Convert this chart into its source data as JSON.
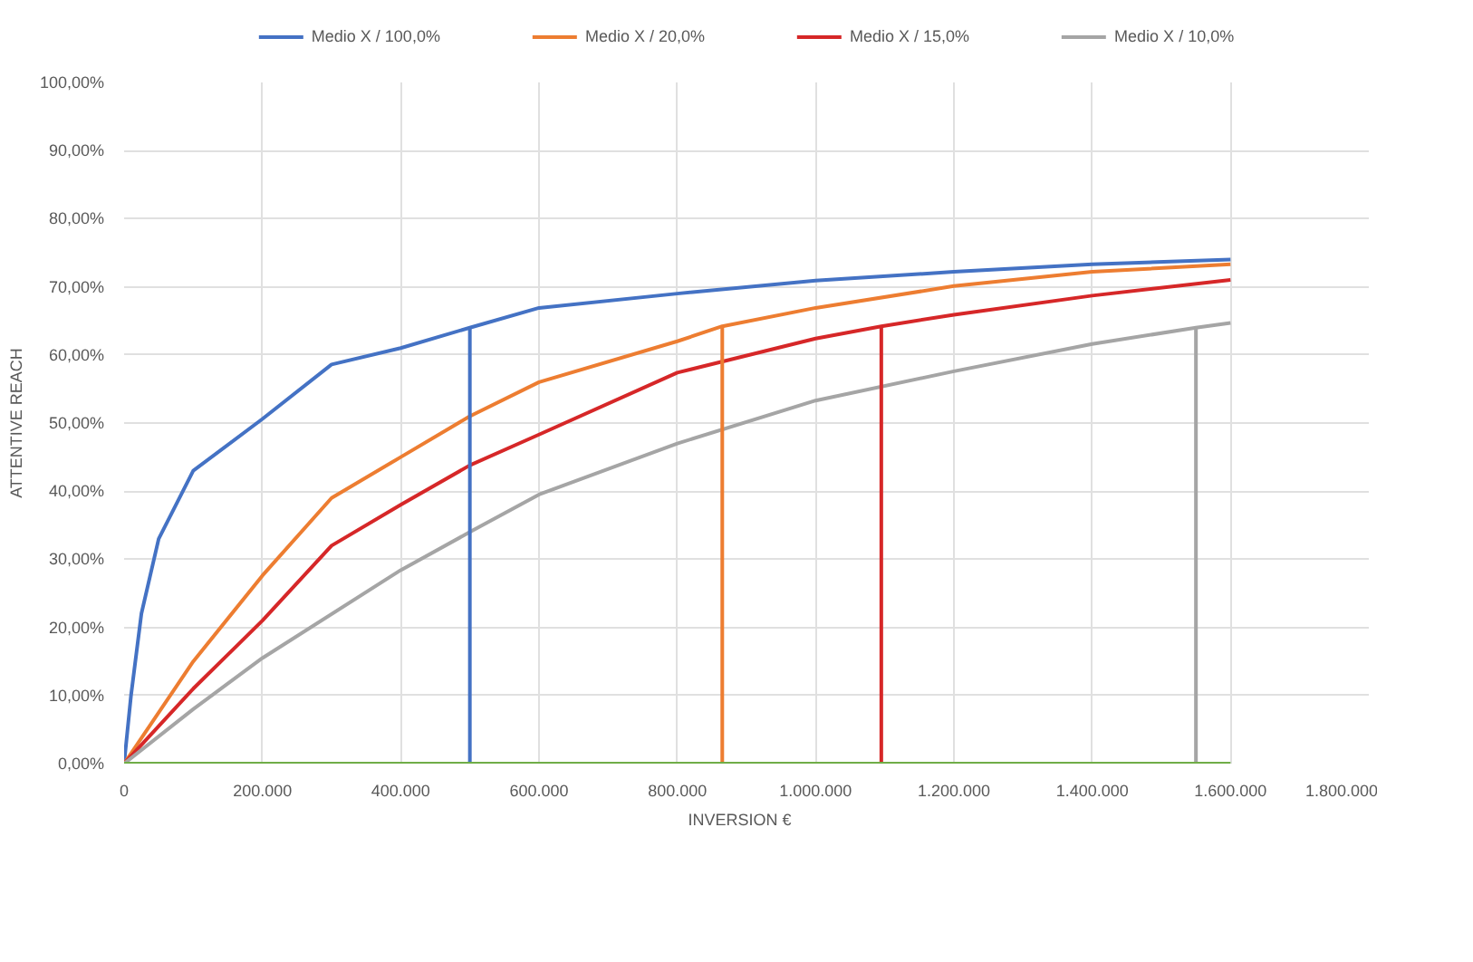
{
  "chart_data": {
    "type": "line",
    "xlabel": "INVERSION    €",
    "ylabel": "ATTENTIVE REACH",
    "xlim": [
      0,
      1800000
    ],
    "ylim": [
      0,
      100
    ],
    "xticks": [
      {
        "value": 0,
        "label": "0"
      },
      {
        "value": 200000,
        "label": "200.000"
      },
      {
        "value": 400000,
        "label": "400.000"
      },
      {
        "value": 600000,
        "label": "600.000"
      },
      {
        "value": 800000,
        "label": "800.000"
      },
      {
        "value": 1000000,
        "label": "1.000.000"
      },
      {
        "value": 1200000,
        "label": "1.200.000"
      },
      {
        "value": 1400000,
        "label": "1.400.000"
      },
      {
        "value": 1600000,
        "label": "1.600.000"
      },
      {
        "value": 1800000,
        "label": "1.800.000"
      }
    ],
    "yticks": [
      {
        "value": 0,
        "label": "0,00%"
      },
      {
        "value": 10,
        "label": "10,00%"
      },
      {
        "value": 20,
        "label": "20,00%"
      },
      {
        "value": 30,
        "label": "30,00%"
      },
      {
        "value": 40,
        "label": "40,00%"
      },
      {
        "value": 50,
        "label": "50,00%"
      },
      {
        "value": 60,
        "label": "60,00%"
      },
      {
        "value": 70,
        "label": "70,00%"
      },
      {
        "value": 80,
        "label": "80,00%"
      },
      {
        "value": 90,
        "label": "90,00%"
      },
      {
        "value": 100,
        "label": "100,00%"
      }
    ],
    "grid": true,
    "legend": "top",
    "marker": "none",
    "line_style": "solid",
    "series": [
      {
        "name": "Medio X / 100,0%",
        "color": "#4472c4",
        "x": [
          0,
          10000,
          25000,
          50000,
          100000,
          200000,
          300000,
          400000,
          500000,
          600000,
          800000,
          1000000,
          1200000,
          1400000,
          1600000
        ],
        "values": [
          0,
          10,
          22,
          33,
          43,
          50.6,
          58.6,
          61,
          64,
          66.9,
          69,
          70.9,
          72.2,
          73.3,
          74
        ]
      },
      {
        "name": "Medio X / 20,0%",
        "color": "#ed7d31",
        "x": [
          0,
          100000,
          200000,
          300000,
          400000,
          500000,
          600000,
          800000,
          865000,
          1000000,
          1200000,
          1400000,
          1600000
        ],
        "values": [
          0,
          15,
          27.6,
          39,
          45,
          51,
          56,
          62,
          64.2,
          66.9,
          70.1,
          72.2,
          73.3
        ]
      },
      {
        "name": "Medio X / 15,0%",
        "color": "#d62728",
        "x": [
          0,
          100000,
          200000,
          300000,
          400000,
          500000,
          600000,
          800000,
          1000000,
          1095000,
          1200000,
          1400000,
          1600000
        ],
        "values": [
          0,
          11,
          21,
          32,
          38,
          43.8,
          48.3,
          57.4,
          62.4,
          64.2,
          65.9,
          68.7,
          71
        ]
      },
      {
        "name": "Medio X / 10,0%",
        "color": "#a5a5a5",
        "x": [
          0,
          100000,
          200000,
          400000,
          500000,
          600000,
          800000,
          1000000,
          1200000,
          1400000,
          1550000,
          1600000
        ],
        "values": [
          0,
          8,
          15.5,
          28.4,
          34,
          39.5,
          47,
          53.3,
          57.6,
          61.6,
          64,
          64.7
        ]
      },
      {
        "color": "#4472c4",
        "x": [
          500000,
          500000
        ],
        "values": [
          0,
          64
        ]
      },
      {
        "color": "#ed7d31",
        "x": [
          865000,
          865000
        ],
        "values": [
          0,
          64.2
        ]
      },
      {
        "color": "#d62728",
        "x": [
          1095000,
          1095000
        ],
        "values": [
          0,
          64.2
        ]
      },
      {
        "color": "#a5a5a5",
        "x": [
          1550000,
          1550000
        ],
        "values": [
          0,
          64
        ]
      },
      {
        "color": "#70ad47",
        "x": [
          0,
          1600000
        ],
        "values": [
          0,
          0
        ]
      }
    ]
  }
}
